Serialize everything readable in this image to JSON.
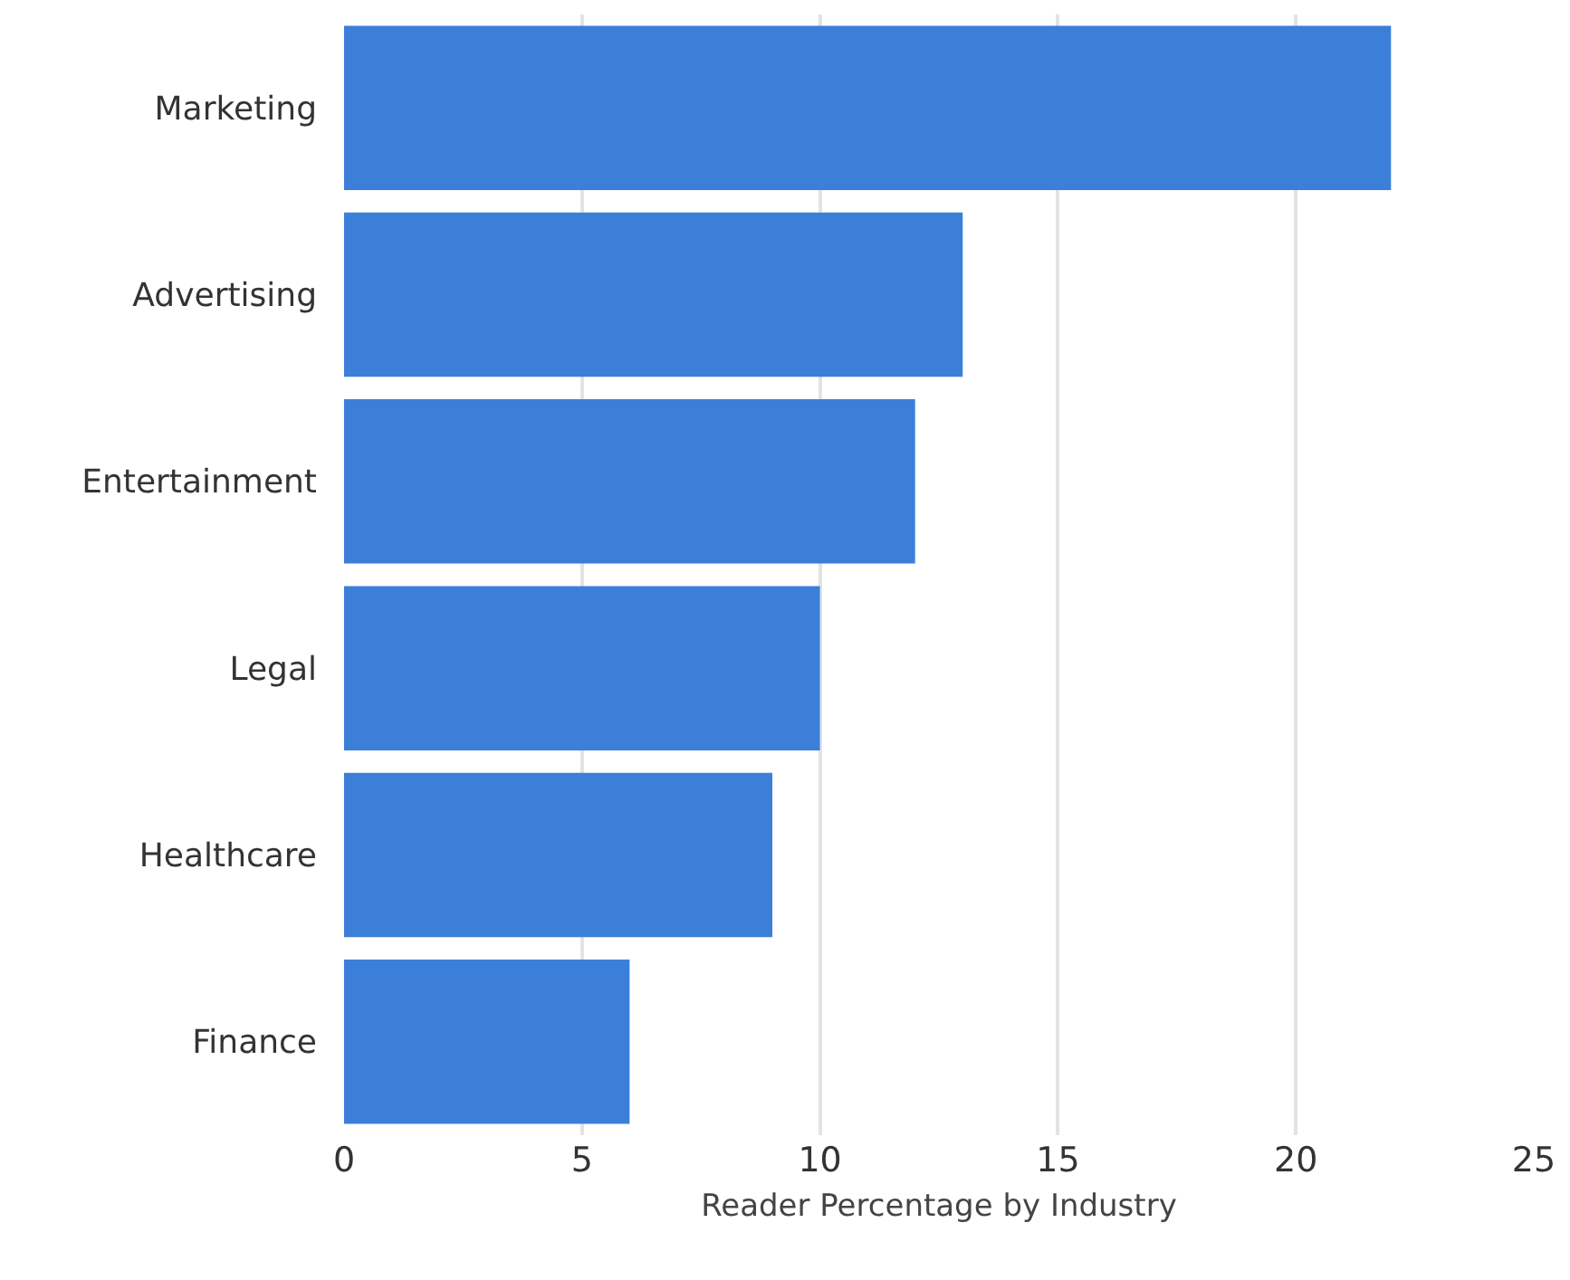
{
  "chart_data": {
    "type": "bar",
    "orientation": "horizontal",
    "xlabel": "Reader Percentage by Industry",
    "categories": [
      "Marketing",
      "Advertising",
      "Entertainment",
      "Legal",
      "Healthcare",
      "Finance"
    ],
    "values": [
      22,
      13,
      12,
      10,
      9,
      6
    ],
    "color": "#3b7fd9",
    "xlim": [
      0,
      25
    ],
    "xticks": [
      0,
      5,
      10,
      15,
      20,
      25
    ],
    "grid": "x",
    "legend": false
  }
}
